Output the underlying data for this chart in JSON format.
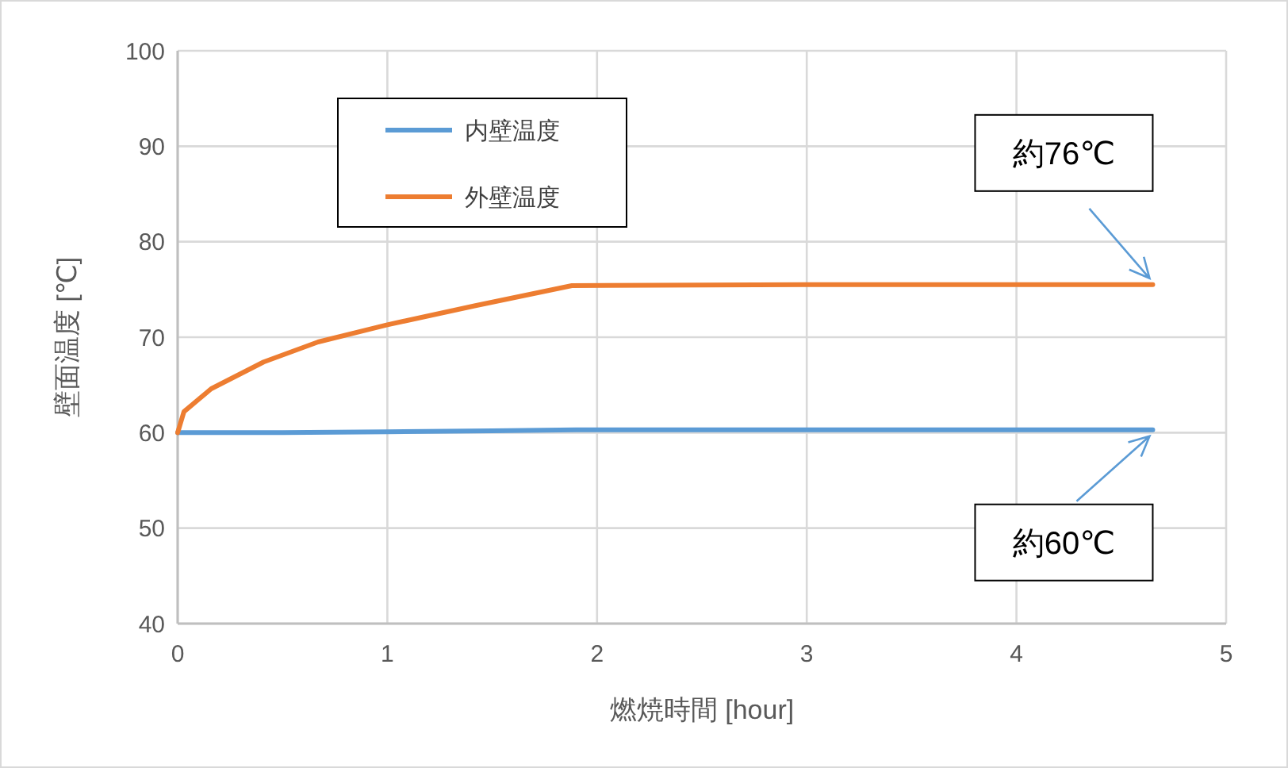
{
  "chart_data": {
    "type": "line",
    "xlabel": "燃焼時間 [hour]",
    "ylabel": "壁面温度 [℃]",
    "xlim": [
      0,
      5
    ],
    "xticks": [
      0,
      1,
      2,
      3,
      4,
      5
    ],
    "ylim": [
      40,
      100
    ],
    "yticks": [
      40,
      50,
      60,
      70,
      80,
      90,
      100
    ],
    "grid": true,
    "legend": "top left",
    "marker": "none",
    "line_style": "solid",
    "series": [
      {
        "name": "内壁温度",
        "color": "#5b9bd5",
        "x": [
          0,
          0.5,
          1,
          1.5,
          1.9,
          3,
          4,
          4.65
        ],
        "values": [
          60,
          60,
          60.1,
          60.2,
          60.3,
          60.3,
          60.3,
          60.3
        ]
      },
      {
        "name": "外壁温度",
        "color": "#ed7d31",
        "x": [
          0,
          0.03,
          0.16,
          0.41,
          0.67,
          1.0,
          1.42,
          1.88,
          3,
          4,
          4.65
        ],
        "values": [
          60,
          62.2,
          64.6,
          67.4,
          69.5,
          71.3,
          73.3,
          75.4,
          75.5,
          75.5,
          75.5
        ]
      }
    ],
    "annotations": [
      {
        "text": "約76℃",
        "x": 4.65,
        "y": 75.5
      },
      {
        "text": "約60℃",
        "x": 4.65,
        "y": 60.3
      }
    ]
  }
}
